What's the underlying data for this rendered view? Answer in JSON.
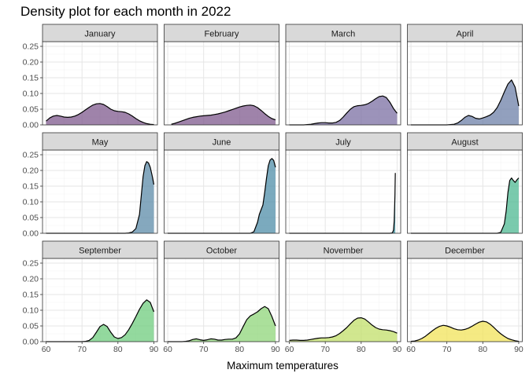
{
  "chart_data": {
    "type": "area",
    "title": "Density plot for each month in 2022",
    "xlabel": "Maximum temperatures",
    "ylabel": "",
    "xlim": [
      59,
      91
    ],
    "ylim": [
      0,
      0.265
    ],
    "x_ticks": [
      60,
      70,
      80,
      90
    ],
    "y_ticks": [
      0,
      0.05,
      0.1,
      0.15,
      0.2,
      0.25
    ],
    "y_tick_labels": [
      "0.00",
      "0.05",
      "0.10",
      "0.15",
      "0.20",
      "0.25"
    ],
    "grid": true,
    "facets": [
      {
        "label": "January",
        "color": "#7f5a8e",
        "points": [
          [
            60,
            0.012
          ],
          [
            61,
            0.022
          ],
          [
            62,
            0.028
          ],
          [
            63,
            0.03
          ],
          [
            64,
            0.028
          ],
          [
            65,
            0.025
          ],
          [
            66,
            0.024
          ],
          [
            67,
            0.025
          ],
          [
            68,
            0.028
          ],
          [
            69,
            0.033
          ],
          [
            70,
            0.04
          ],
          [
            71,
            0.048
          ],
          [
            72,
            0.056
          ],
          [
            73,
            0.063
          ],
          [
            74,
            0.067
          ],
          [
            75,
            0.068
          ],
          [
            76,
            0.065
          ],
          [
            77,
            0.058
          ],
          [
            78,
            0.05
          ],
          [
            79,
            0.045
          ],
          [
            80,
            0.043
          ],
          [
            81,
            0.042
          ],
          [
            82,
            0.04
          ],
          [
            83,
            0.035
          ],
          [
            84,
            0.028
          ],
          [
            85,
            0.02
          ],
          [
            86,
            0.013
          ],
          [
            87,
            0.008
          ],
          [
            88,
            0.004
          ],
          [
            89,
            0.002
          ],
          [
            90,
            0.001
          ]
        ]
      },
      {
        "label": "February",
        "color": "#7f5a8e",
        "points": [
          [
            61,
            0.002
          ],
          [
            62,
            0.005
          ],
          [
            63,
            0.009
          ],
          [
            64,
            0.013
          ],
          [
            65,
            0.017
          ],
          [
            66,
            0.021
          ],
          [
            67,
            0.024
          ],
          [
            68,
            0.026
          ],
          [
            69,
            0.028
          ],
          [
            70,
            0.029
          ],
          [
            71,
            0.03
          ],
          [
            72,
            0.031
          ],
          [
            73,
            0.033
          ],
          [
            74,
            0.035
          ],
          [
            75,
            0.038
          ],
          [
            76,
            0.041
          ],
          [
            77,
            0.045
          ],
          [
            78,
            0.049
          ],
          [
            79,
            0.053
          ],
          [
            80,
            0.057
          ],
          [
            81,
            0.06
          ],
          [
            82,
            0.062
          ],
          [
            83,
            0.063
          ],
          [
            84,
            0.061
          ],
          [
            85,
            0.055
          ],
          [
            86,
            0.046
          ],
          [
            87,
            0.036
          ],
          [
            88,
            0.027
          ],
          [
            89,
            0.02
          ],
          [
            90,
            0.016
          ]
        ]
      },
      {
        "label": "March",
        "color": "#7b6fa3",
        "points": [
          [
            60,
            0
          ],
          [
            62,
            0
          ],
          [
            64,
            0
          ],
          [
            66,
            0.002
          ],
          [
            67,
            0.004
          ],
          [
            68,
            0.006
          ],
          [
            69,
            0.007
          ],
          [
            70,
            0.007
          ],
          [
            71,
            0.006
          ],
          [
            72,
            0.006
          ],
          [
            73,
            0.008
          ],
          [
            74,
            0.014
          ],
          [
            75,
            0.025
          ],
          [
            76,
            0.038
          ],
          [
            77,
            0.05
          ],
          [
            78,
            0.058
          ],
          [
            79,
            0.061
          ],
          [
            80,
            0.062
          ],
          [
            81,
            0.064
          ],
          [
            82,
            0.068
          ],
          [
            83,
            0.075
          ],
          [
            84,
            0.083
          ],
          [
            85,
            0.09
          ],
          [
            86,
            0.092
          ],
          [
            87,
            0.087
          ],
          [
            88,
            0.072
          ],
          [
            89,
            0.052
          ],
          [
            90,
            0.037
          ]
        ]
      },
      {
        "label": "April",
        "color": "#6d80a8",
        "points": [
          [
            60,
            0
          ],
          [
            65,
            0
          ],
          [
            70,
            0
          ],
          [
            72,
            0.002
          ],
          [
            73,
            0.006
          ],
          [
            74,
            0.014
          ],
          [
            75,
            0.024
          ],
          [
            76,
            0.03
          ],
          [
            77,
            0.027
          ],
          [
            78,
            0.021
          ],
          [
            79,
            0.019
          ],
          [
            80,
            0.022
          ],
          [
            81,
            0.026
          ],
          [
            82,
            0.031
          ],
          [
            83,
            0.04
          ],
          [
            84,
            0.055
          ],
          [
            85,
            0.078
          ],
          [
            86,
            0.105
          ],
          [
            87,
            0.13
          ],
          [
            88,
            0.143
          ],
          [
            89,
            0.12
          ],
          [
            90,
            0.06
          ]
        ]
      },
      {
        "label": "May",
        "color": "#5c8ba8",
        "points": [
          [
            60,
            0
          ],
          [
            65,
            0
          ],
          [
            70,
            0
          ],
          [
            75,
            0
          ],
          [
            80,
            0
          ],
          [
            82,
            0
          ],
          [
            83,
            0.001
          ],
          [
            84,
            0.004
          ],
          [
            85,
            0.015
          ],
          [
            86,
            0.06
          ],
          [
            86.5,
            0.12
          ],
          [
            87,
            0.18
          ],
          [
            87.5,
            0.215
          ],
          [
            88,
            0.228
          ],
          [
            88.5,
            0.224
          ],
          [
            89,
            0.21
          ],
          [
            89.5,
            0.185
          ],
          [
            90,
            0.155
          ]
        ]
      },
      {
        "label": "June",
        "color": "#4f8da8",
        "points": [
          [
            60,
            0
          ],
          [
            65,
            0
          ],
          [
            70,
            0
          ],
          [
            75,
            0
          ],
          [
            80,
            0
          ],
          [
            83,
            0
          ],
          [
            84,
            0.005
          ],
          [
            85,
            0.035
          ],
          [
            85.5,
            0.06
          ],
          [
            86,
            0.075
          ],
          [
            86.5,
            0.09
          ],
          [
            87,
            0.13
          ],
          [
            87.5,
            0.175
          ],
          [
            88,
            0.215
          ],
          [
            88.5,
            0.233
          ],
          [
            89,
            0.238
          ],
          [
            89.5,
            0.232
          ],
          [
            90,
            0.21
          ]
        ]
      },
      {
        "label": "July",
        "color": "#3a8f9c",
        "points": [
          [
            60,
            0
          ],
          [
            65,
            0
          ],
          [
            70,
            0
          ],
          [
            75,
            0
          ],
          [
            80,
            0
          ],
          [
            85,
            0
          ],
          [
            88,
            0
          ],
          [
            88.6,
            0.001
          ],
          [
            88.8,
            0.004
          ],
          [
            89,
            0.01
          ],
          [
            89.2,
            0.04
          ],
          [
            89.4,
            0.12
          ],
          [
            89.5,
            0.192
          ]
        ]
      },
      {
        "label": "August",
        "color": "#4db891",
        "points": [
          [
            60,
            0
          ],
          [
            65,
            0
          ],
          [
            70,
            0
          ],
          [
            75,
            0
          ],
          [
            80,
            0
          ],
          [
            84,
            0
          ],
          [
            85,
            0.003
          ],
          [
            86,
            0.03
          ],
          [
            86.5,
            0.07
          ],
          [
            87,
            0.13
          ],
          [
            87.5,
            0.168
          ],
          [
            88,
            0.176
          ],
          [
            88.5,
            0.168
          ],
          [
            89,
            0.162
          ],
          [
            89.5,
            0.17
          ],
          [
            90,
            0.176
          ]
        ]
      },
      {
        "label": "September",
        "color": "#6fcc7d",
        "points": [
          [
            60,
            0
          ],
          [
            65,
            0
          ],
          [
            70,
            0
          ],
          [
            71,
            0.001
          ],
          [
            72,
            0.004
          ],
          [
            73,
            0.013
          ],
          [
            74,
            0.03
          ],
          [
            75,
            0.048
          ],
          [
            76,
            0.055
          ],
          [
            77,
            0.048
          ],
          [
            78,
            0.03
          ],
          [
            79,
            0.015
          ],
          [
            80,
            0.01
          ],
          [
            81,
            0.013
          ],
          [
            82,
            0.022
          ],
          [
            83,
            0.038
          ],
          [
            84,
            0.058
          ],
          [
            85,
            0.08
          ],
          [
            86,
            0.103
          ],
          [
            87,
            0.122
          ],
          [
            88,
            0.133
          ],
          [
            89,
            0.125
          ],
          [
            90,
            0.095
          ]
        ]
      },
      {
        "label": "October",
        "color": "#8fd67a",
        "points": [
          [
            60,
            0
          ],
          [
            64,
            0
          ],
          [
            65,
            0.001
          ],
          [
            66,
            0.003
          ],
          [
            67,
            0.007
          ],
          [
            68,
            0.009
          ],
          [
            69,
            0.006
          ],
          [
            70,
            0.004
          ],
          [
            71,
            0.006
          ],
          [
            72,
            0.009
          ],
          [
            73,
            0.008
          ],
          [
            74,
            0.005
          ],
          [
            75,
            0.005
          ],
          [
            76,
            0.007
          ],
          [
            77,
            0.008
          ],
          [
            78,
            0.008
          ],
          [
            79,
            0.012
          ],
          [
            80,
            0.025
          ],
          [
            81,
            0.048
          ],
          [
            82,
            0.07
          ],
          [
            83,
            0.082
          ],
          [
            84,
            0.088
          ],
          [
            85,
            0.095
          ],
          [
            86,
            0.105
          ],
          [
            87,
            0.112
          ],
          [
            88,
            0.105
          ],
          [
            89,
            0.08
          ],
          [
            90,
            0.05
          ]
        ]
      },
      {
        "label": "November",
        "color": "#c2df6a",
        "points": [
          [
            60,
            0.004
          ],
          [
            61,
            0.005
          ],
          [
            62,
            0.005
          ],
          [
            63,
            0.004
          ],
          [
            64,
            0.004
          ],
          [
            65,
            0.005
          ],
          [
            66,
            0.007
          ],
          [
            67,
            0.009
          ],
          [
            68,
            0.011
          ],
          [
            69,
            0.012
          ],
          [
            70,
            0.012
          ],
          [
            71,
            0.013
          ],
          [
            72,
            0.015
          ],
          [
            73,
            0.019
          ],
          [
            74,
            0.026
          ],
          [
            75,
            0.035
          ],
          [
            76,
            0.045
          ],
          [
            77,
            0.057
          ],
          [
            78,
            0.068
          ],
          [
            79,
            0.075
          ],
          [
            80,
            0.076
          ],
          [
            81,
            0.072
          ],
          [
            82,
            0.063
          ],
          [
            83,
            0.053
          ],
          [
            84,
            0.045
          ],
          [
            85,
            0.04
          ],
          [
            86,
            0.038
          ],
          [
            87,
            0.037
          ],
          [
            88,
            0.035
          ],
          [
            89,
            0.032
          ],
          [
            90,
            0.027
          ]
        ]
      },
      {
        "label": "December",
        "color": "#f2e35a",
        "points": [
          [
            60,
            0.001
          ],
          [
            61,
            0.002
          ],
          [
            62,
            0.005
          ],
          [
            63,
            0.01
          ],
          [
            64,
            0.017
          ],
          [
            65,
            0.026
          ],
          [
            66,
            0.035
          ],
          [
            67,
            0.043
          ],
          [
            68,
            0.049
          ],
          [
            69,
            0.052
          ],
          [
            70,
            0.05
          ],
          [
            71,
            0.046
          ],
          [
            72,
            0.041
          ],
          [
            73,
            0.038
          ],
          [
            74,
            0.037
          ],
          [
            75,
            0.039
          ],
          [
            76,
            0.043
          ],
          [
            77,
            0.049
          ],
          [
            78,
            0.056
          ],
          [
            79,
            0.062
          ],
          [
            80,
            0.065
          ],
          [
            81,
            0.063
          ],
          [
            82,
            0.056
          ],
          [
            83,
            0.046
          ],
          [
            84,
            0.035
          ],
          [
            85,
            0.025
          ],
          [
            86,
            0.017
          ],
          [
            87,
            0.01
          ],
          [
            88,
            0.006
          ],
          [
            89,
            0.003
          ],
          [
            90,
            0.001
          ]
        ]
      }
    ]
  }
}
